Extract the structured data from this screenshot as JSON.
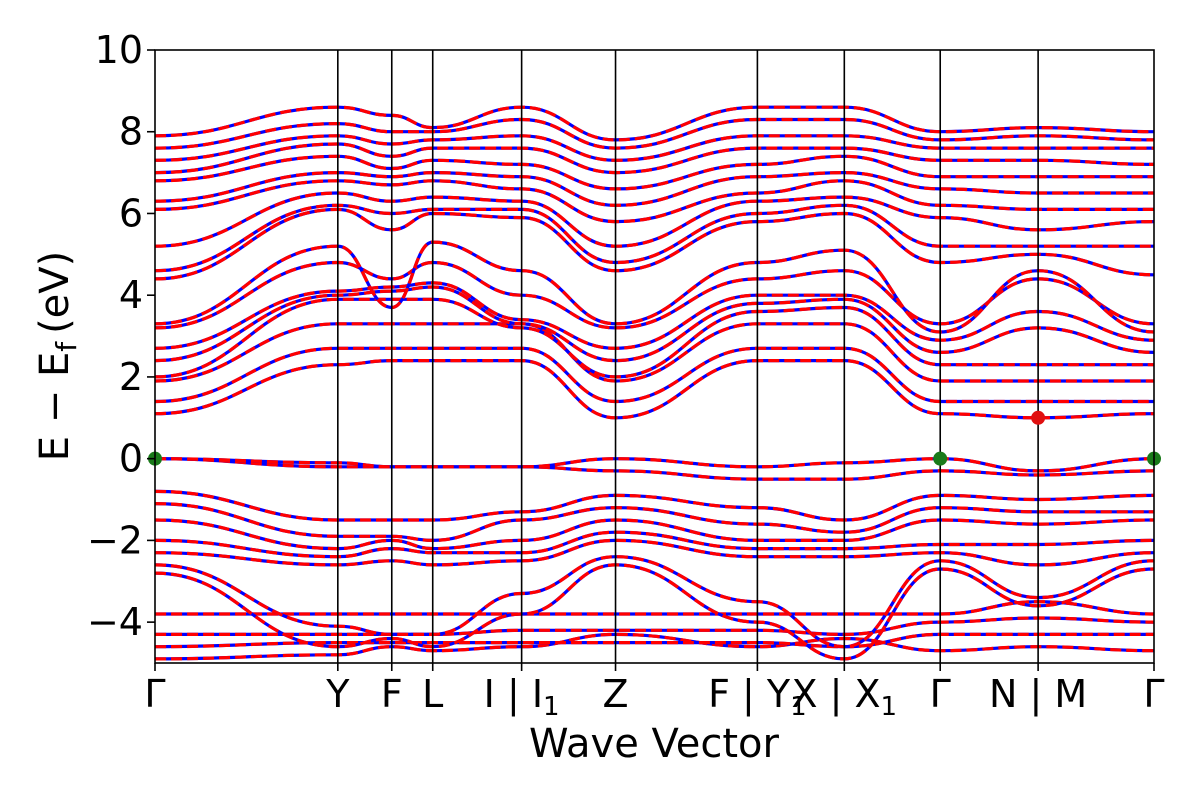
{
  "chart_data": {
    "type": "line",
    "title": "",
    "xlabel": "Wave Vector",
    "ylabel": "E − E",
    "ylabel_subscript": "f",
    "ylabel_unit": "(eV)",
    "ylim": [
      -5,
      10
    ],
    "yticks": [
      10,
      8,
      6,
      4,
      2,
      0,
      -2,
      -4
    ],
    "ytick_labels": [
      "10",
      "8",
      "6",
      "4",
      "2",
      "0",
      "−2",
      "−4"
    ],
    "xlim": [
      0,
      1
    ],
    "kpath_ticks": [
      {
        "pos": 0.0,
        "label": "Γ"
      },
      {
        "pos": 0.183,
        "label": "Y"
      },
      {
        "pos": 0.237,
        "label": "F"
      },
      {
        "pos": 0.278,
        "label": "L"
      },
      {
        "pos": 0.367,
        "label": "I | I",
        "sub": "1"
      },
      {
        "pos": 0.461,
        "label": "Z"
      },
      {
        "pos": 0.603,
        "label": "F | Y",
        "sub": "1"
      },
      {
        "pos": 0.69,
        "label": "X | X",
        "sub": "1"
      },
      {
        "pos": 0.786,
        "label": "Γ"
      },
      {
        "pos": 0.884,
        "label": "N | M"
      },
      {
        "pos": 1.0,
        "label": "Γ"
      }
    ],
    "grid": false,
    "legend": "none",
    "series_styles": [
      {
        "style": "solid",
        "color": "#0000ff"
      },
      {
        "style": "dashed",
        "color": "#ff0000"
      }
    ],
    "markers": [
      {
        "x": 0.0,
        "y": 0.0,
        "color": "#1a7a1a"
      },
      {
        "x": 0.786,
        "y": 0.0,
        "color": "#1a7a1a"
      },
      {
        "x": 1.0,
        "y": 0.0,
        "color": "#1a7a1a"
      },
      {
        "x": 0.884,
        "y": 1.0,
        "color": "#e01010"
      }
    ],
    "bands": [
      {
        "y": [
          -4.9,
          -4.8,
          -4.6,
          -4.7,
          -4.6,
          -4.3,
          -4.6,
          -4.4,
          -4.7,
          -4.6,
          -4.7
        ]
      },
      {
        "y": [
          -4.6,
          -4.5,
          -4.5,
          -4.5,
          -4.5,
          -4.5,
          -4.5,
          -4.6,
          -4.3,
          -4.3,
          -4.3
        ]
      },
      {
        "y": [
          -4.3,
          -4.3,
          -4.3,
          -4.3,
          -4.2,
          -4.2,
          -4.2,
          -4.3,
          -4.0,
          -3.9,
          -4.0
        ]
      },
      {
        "y": [
          -3.8,
          -3.8,
          -3.8,
          -3.8,
          -3.8,
          -3.8,
          -3.8,
          -3.8,
          -3.8,
          -3.5,
          -3.8
        ]
      },
      {
        "y": [
          -2.8,
          -4.6,
          -4.4,
          -4.6,
          -3.8,
          -2.6,
          -4.0,
          -4.9,
          -2.7,
          -3.6,
          -2.7
        ]
      },
      {
        "y": [
          -2.6,
          -4.1,
          -4.3,
          -4.3,
          -3.3,
          -2.4,
          -3.5,
          -4.6,
          -2.5,
          -3.4,
          -2.5
        ]
      },
      {
        "y": [
          -2.3,
          -2.6,
          -2.5,
          -2.6,
          -2.5,
          -2.0,
          -2.4,
          -2.4,
          -2.3,
          -2.6,
          -2.3
        ]
      },
      {
        "y": [
          -2.0,
          -2.4,
          -2.2,
          -2.3,
          -2.3,
          -1.8,
          -2.2,
          -2.2,
          -2.1,
          -2.1,
          -2.0
        ]
      },
      {
        "y": [
          -1.5,
          -2.2,
          -2.0,
          -2.2,
          -2.0,
          -1.5,
          -2.0,
          -2.0,
          -1.5,
          -1.6,
          -1.5
        ]
      },
      {
        "y": [
          -1.1,
          -1.9,
          -1.9,
          -2.0,
          -1.5,
          -1.2,
          -1.6,
          -1.8,
          -1.2,
          -1.3,
          -1.3
        ]
      },
      {
        "y": [
          -0.8,
          -1.5,
          -1.5,
          -1.5,
          -1.3,
          -0.9,
          -1.2,
          -1.5,
          -0.9,
          -1.0,
          -0.9
        ]
      },
      {
        "y": [
          0.0,
          -0.2,
          -0.2,
          -0.2,
          -0.2,
          -0.3,
          -0.5,
          -0.5,
          -0.3,
          -0.4,
          -0.3
        ]
      },
      {
        "y": [
          0.0,
          -0.1,
          -0.2,
          -0.2,
          -0.2,
          0.0,
          -0.2,
          -0.1,
          0.0,
          -0.3,
          0.0
        ]
      },
      {
        "y": [
          1.1,
          2.3,
          2.4,
          2.4,
          2.4,
          1.0,
          2.4,
          2.4,
          1.1,
          1.0,
          1.1
        ]
      },
      {
        "y": [
          1.4,
          2.7,
          2.7,
          2.7,
          2.7,
          1.4,
          2.7,
          2.7,
          1.4,
          1.4,
          1.4
        ]
      },
      {
        "y": [
          1.9,
          3.3,
          3.3,
          3.3,
          3.3,
          1.9,
          3.3,
          3.3,
          1.9,
          1.9,
          1.9
        ]
      },
      {
        "y": [
          2.0,
          3.9,
          3.9,
          3.9,
          3.2,
          2.0,
          3.6,
          3.7,
          2.3,
          2.3,
          2.3
        ]
      },
      {
        "y": [
          2.4,
          4.0,
          4.1,
          4.2,
          3.3,
          2.4,
          3.8,
          3.9,
          2.6,
          3.2,
          2.6
        ]
      },
      {
        "y": [
          2.7,
          4.1,
          4.2,
          4.3,
          3.4,
          2.7,
          4.0,
          4.0,
          2.9,
          3.6,
          2.9
        ]
      },
      {
        "y": [
          3.2,
          4.8,
          4.4,
          4.8,
          4.0,
          3.2,
          4.4,
          4.6,
          3.3,
          4.4,
          3.3
        ]
      },
      {
        "y": [
          3.3,
          5.2,
          3.7,
          5.3,
          4.6,
          3.3,
          4.8,
          5.1,
          3.1,
          4.6,
          3.1
        ]
      },
      {
        "y": [
          4.4,
          6.1,
          5.6,
          6.0,
          5.9,
          4.6,
          5.8,
          6.0,
          4.8,
          5.0,
          4.5
        ]
      },
      {
        "y": [
          4.6,
          6.2,
          6.0,
          6.1,
          6.1,
          4.8,
          6.0,
          6.2,
          5.2,
          5.2,
          5.2
        ]
      },
      {
        "y": [
          5.2,
          6.5,
          6.3,
          6.4,
          6.3,
          5.2,
          6.3,
          6.4,
          5.9,
          5.6,
          5.8
        ]
      },
      {
        "y": [
          6.1,
          6.8,
          6.7,
          6.8,
          6.6,
          5.8,
          6.5,
          6.8,
          6.2,
          6.1,
          6.1
        ]
      },
      {
        "y": [
          6.3,
          7.0,
          6.9,
          7.0,
          6.9,
          6.2,
          6.9,
          7.0,
          6.6,
          6.5,
          6.5
        ]
      },
      {
        "y": [
          6.8,
          7.4,
          7.1,
          7.3,
          7.2,
          6.6,
          7.2,
          7.4,
          6.9,
          6.9,
          6.9
        ]
      },
      {
        "y": [
          7.0,
          7.7,
          7.4,
          7.6,
          7.6,
          7.0,
          7.6,
          7.6,
          7.3,
          7.3,
          7.2
        ]
      },
      {
        "y": [
          7.3,
          7.9,
          7.7,
          7.8,
          7.9,
          7.3,
          7.9,
          7.9,
          7.6,
          7.6,
          7.6
        ]
      },
      {
        "y": [
          7.6,
          8.2,
          8.0,
          8.0,
          8.3,
          7.6,
          8.3,
          8.3,
          7.8,
          7.9,
          7.8
        ]
      },
      {
        "y": [
          7.9,
          8.6,
          8.4,
          8.1,
          8.6,
          7.8,
          8.6,
          8.6,
          8.0,
          8.1,
          8.0
        ]
      }
    ]
  }
}
